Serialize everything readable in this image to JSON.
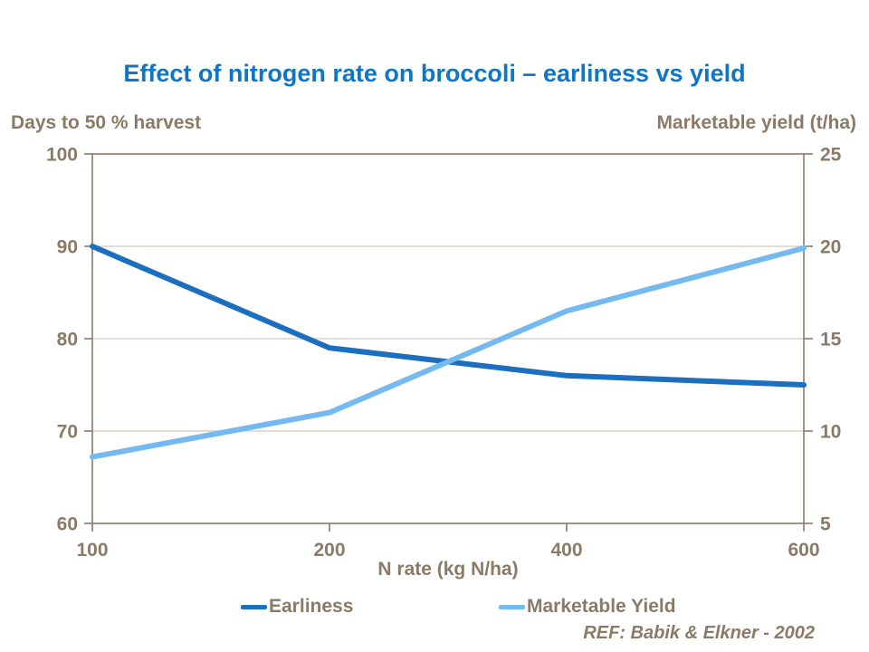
{
  "header": {
    "title": "Effect of nitrogen rate on broccoli – earliness vs yield"
  },
  "axes": {
    "left": {
      "title": "Days to 50 % harvest"
    },
    "right": {
      "title": "Marketable yield (t/ha)"
    },
    "x": {
      "title": "N rate (kg N/ha)"
    }
  },
  "legend": {
    "items": [
      {
        "label": "Earliness",
        "color": "#1B6FBE"
      },
      {
        "label": "Marketable Yield",
        "color": "#74B9F0"
      }
    ]
  },
  "footnote": {
    "text": "REF: Babik & Elkner - 2002"
  },
  "colors": {
    "title_blue": "#0E76C6",
    "earliness_line": "#1B6FBE",
    "yield_line": "#74B9F0",
    "text_brown": "#8A7A66",
    "axis_brown": "#8A7B6B",
    "gridline": "#D9D3C9",
    "background": "#FFFFFF"
  },
  "chart_data": {
    "type": "line",
    "title": "Effect of nitrogen rate on broccoli – earliness vs yield",
    "categories": [
      100,
      200,
      400,
      600
    ],
    "x_tick_labels": [
      "100",
      "200",
      "400",
      "600"
    ],
    "xlabel": "N rate (kg N/ha)",
    "left_axis": {
      "label": "Days to 50 % harvest",
      "min": 60,
      "max": 100,
      "ticks": [
        60,
        70,
        80,
        90,
        100
      ]
    },
    "right_axis": {
      "label": "Marketable yield (t/ha)",
      "min": 5,
      "max": 25,
      "ticks": [
        5,
        10,
        15,
        20,
        25
      ]
    },
    "series": [
      {
        "name": "Earliness",
        "axis": "left",
        "color": "#1B6FBE",
        "values": [
          90,
          79,
          76,
          75
        ]
      },
      {
        "name": "Marketable Yield",
        "axis": "right",
        "color": "#74B9F0",
        "values": [
          8.6,
          11,
          16.5,
          19.9
        ]
      }
    ],
    "grid": "horizontal-only",
    "legend_position": "bottom",
    "note": "REF: Babik & Elkner - 2002"
  }
}
